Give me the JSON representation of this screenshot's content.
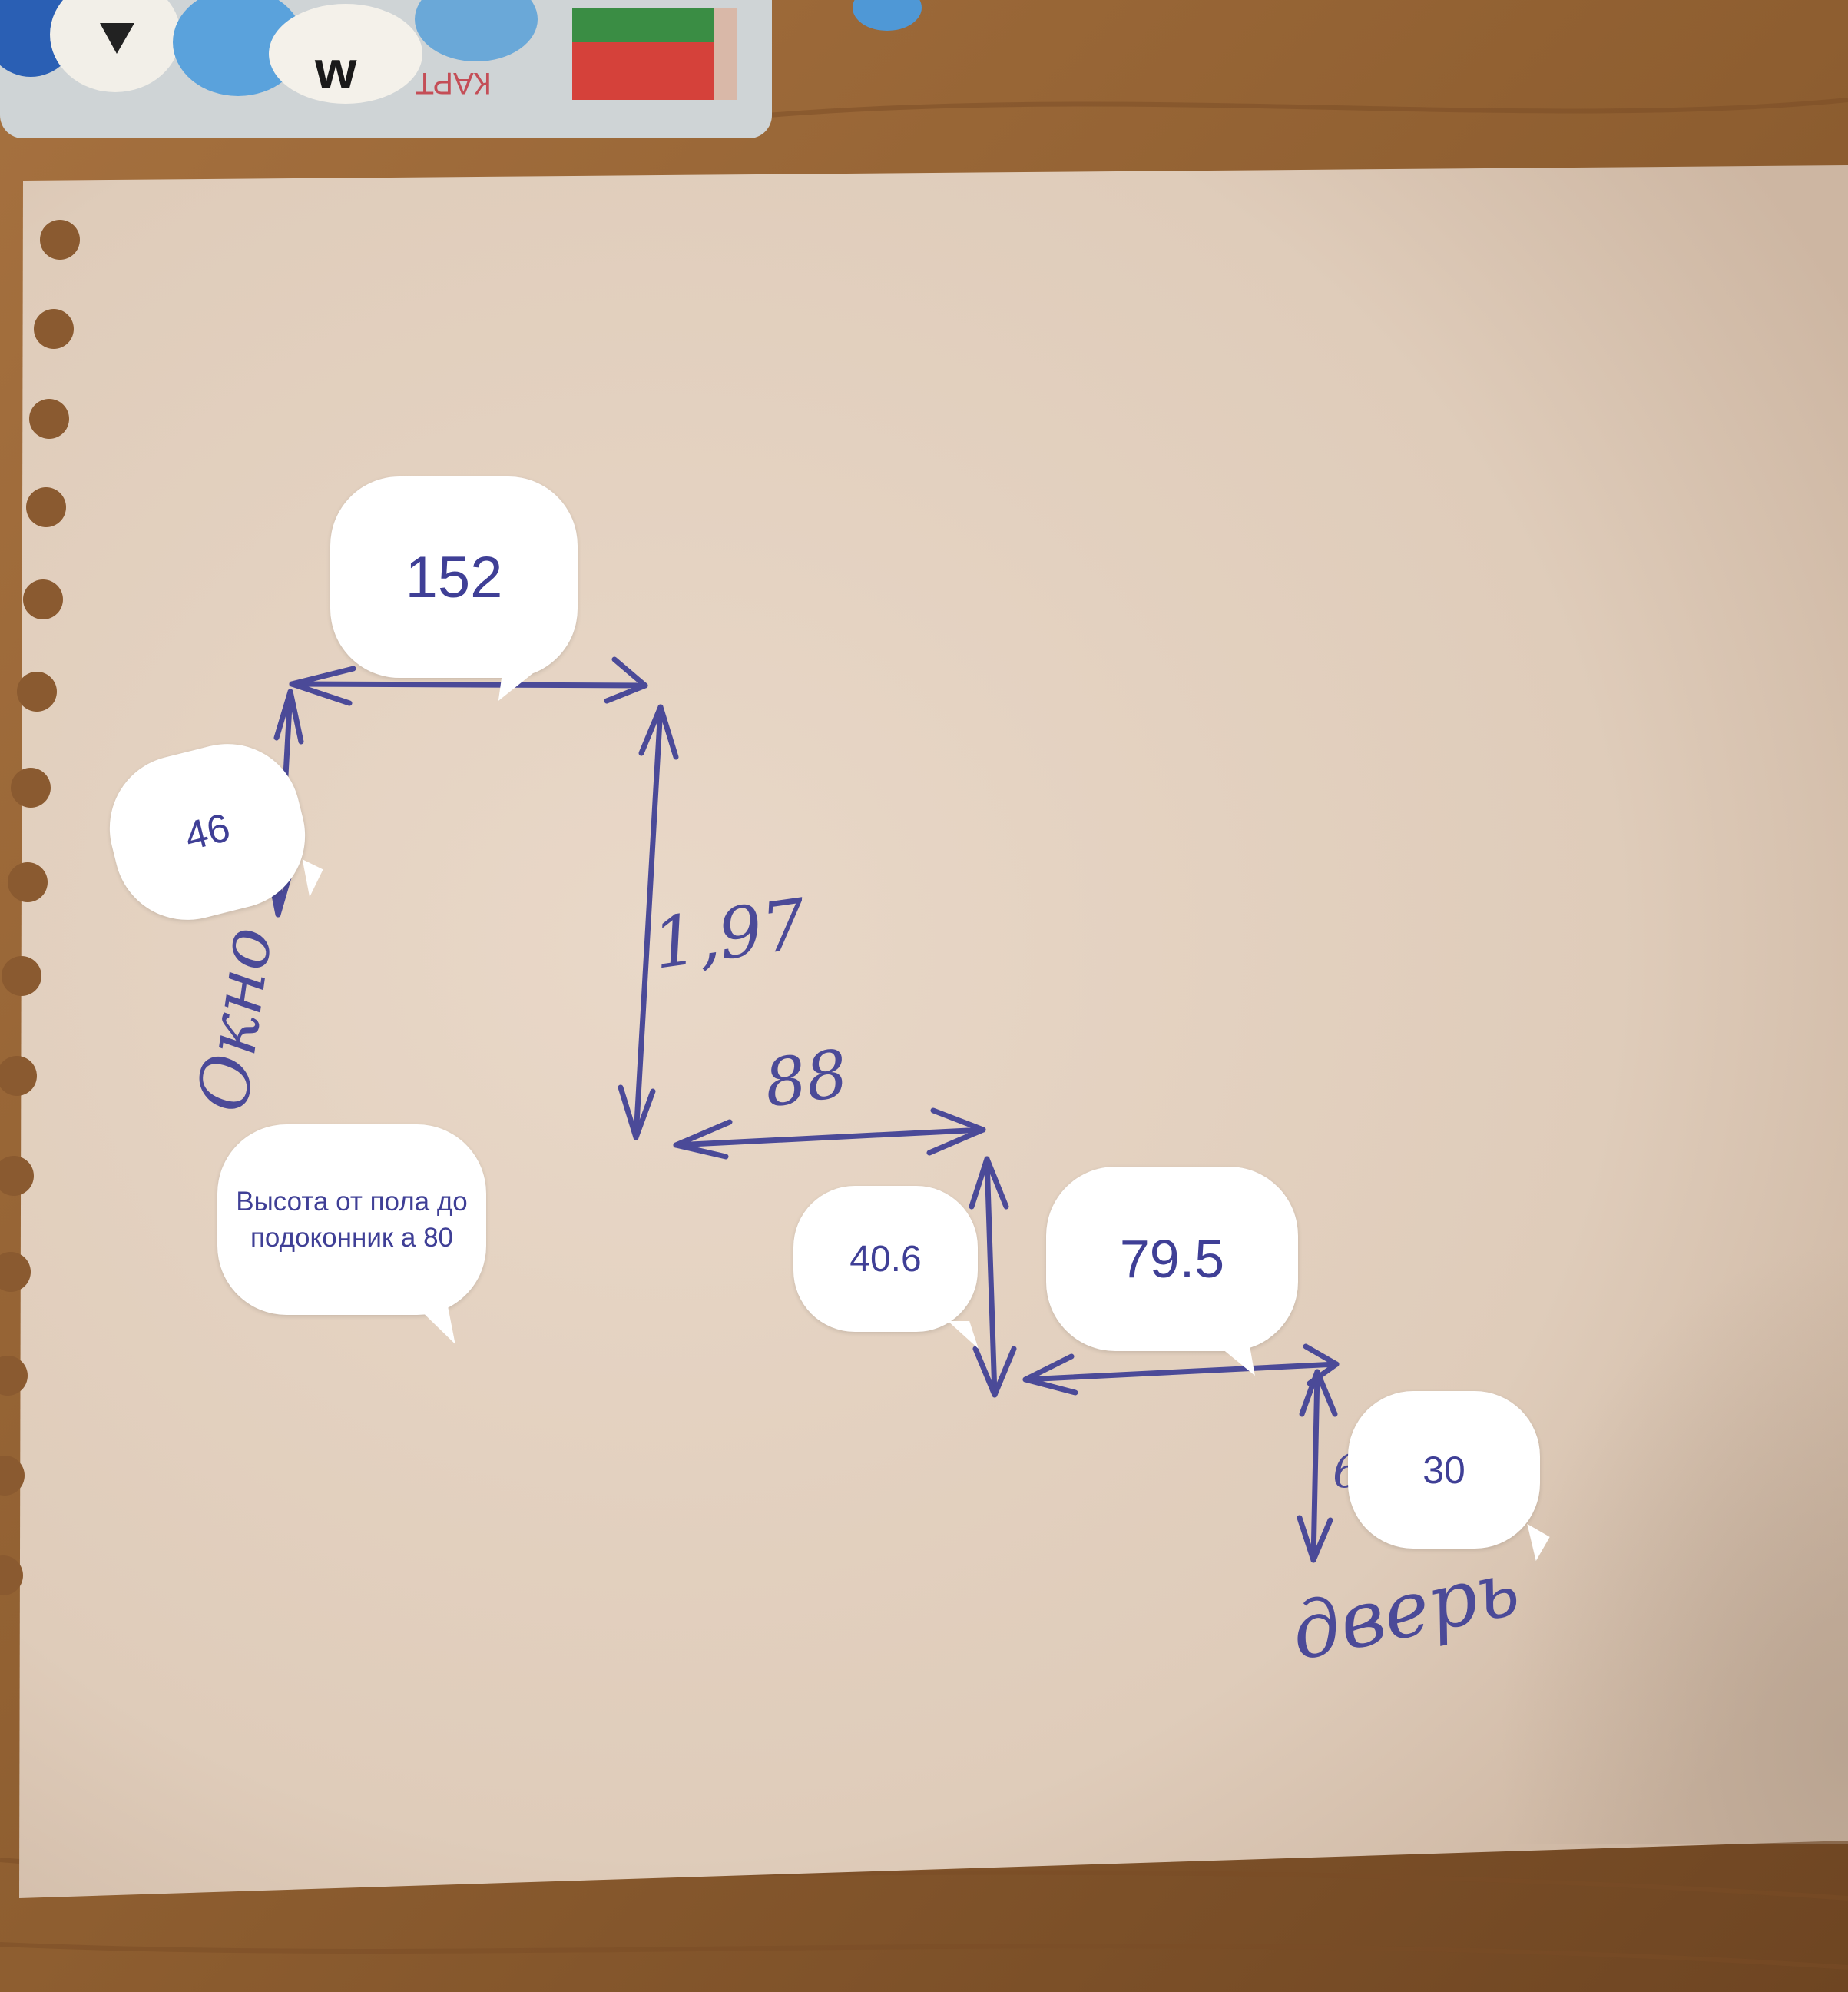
{
  "bubbles": {
    "top": "152",
    "left": "46",
    "note": "Высота от пола до подоконник а 80",
    "mid": "40.6",
    "right": "79.5",
    "door": "30"
  },
  "handwriting": {
    "window": "Окно",
    "height": "1,97",
    "width88": "88",
    "door": "дверь",
    "digit6": "6"
  },
  "card_text": "КАРТ",
  "colors": {
    "table": "#9a6838",
    "paper": "#e6d3c1",
    "ink": "#4b4a98",
    "bubble_text": "#3f3f96"
  }
}
